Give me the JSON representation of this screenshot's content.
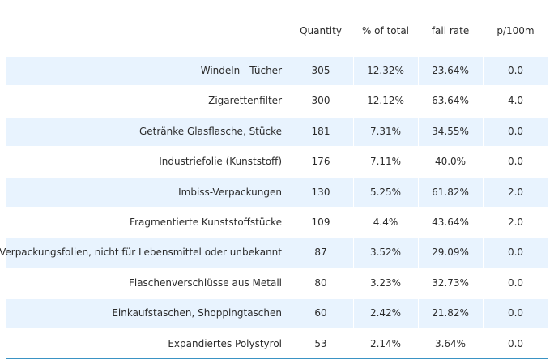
{
  "columns": [
    "Quantity",
    "% of total",
    "fail rate",
    "p/100m"
  ],
  "rows": [
    {
      "label": "Windeln - Tücher",
      "quantity": "305",
      "pct": "12.32%",
      "fail": "23.64%",
      "p100": "0.0"
    },
    {
      "label": "Zigarettenfilter",
      "quantity": "300",
      "pct": "12.12%",
      "fail": "63.64%",
      "p100": "4.0"
    },
    {
      "label": "Getränke Glasflasche, Stücke",
      "quantity": "181",
      "pct": "7.31%",
      "fail": "34.55%",
      "p100": "0.0"
    },
    {
      "label": "Industriefolie (Kunststoff)",
      "quantity": "176",
      "pct": "7.11%",
      "fail": "40.0%",
      "p100": "0.0"
    },
    {
      "label": "Imbiss-Verpackungen",
      "quantity": "130",
      "pct": "5.25%",
      "fail": "61.82%",
      "p100": "2.0"
    },
    {
      "label": "Fragmentierte Kunststoffstücke",
      "quantity": "109",
      "pct": "4.4%",
      "fail": "43.64%",
      "p100": "2.0"
    },
    {
      "label": "Verpackungsfolien, nicht für Lebensmittel oder unbekannt",
      "quantity": "87",
      "pct": "3.52%",
      "fail": "29.09%",
      "p100": "0.0"
    },
    {
      "label": "Flaschenverschlüsse aus Metall",
      "quantity": "80",
      "pct": "3.23%",
      "fail": "32.73%",
      "p100": "0.0"
    },
    {
      "label": "Einkaufstaschen, Shoppingtaschen",
      "quantity": "60",
      "pct": "2.42%",
      "fail": "21.82%",
      "p100": "0.0"
    },
    {
      "label": "Expandiertes Polystyrol",
      "quantity": "53",
      "pct": "2.14%",
      "fail": "3.64%",
      "p100": "0.0"
    }
  ],
  "colors": {
    "rule": "#3a93c4",
    "shade": "#e8f3fe",
    "text": "#2b2b2b"
  }
}
